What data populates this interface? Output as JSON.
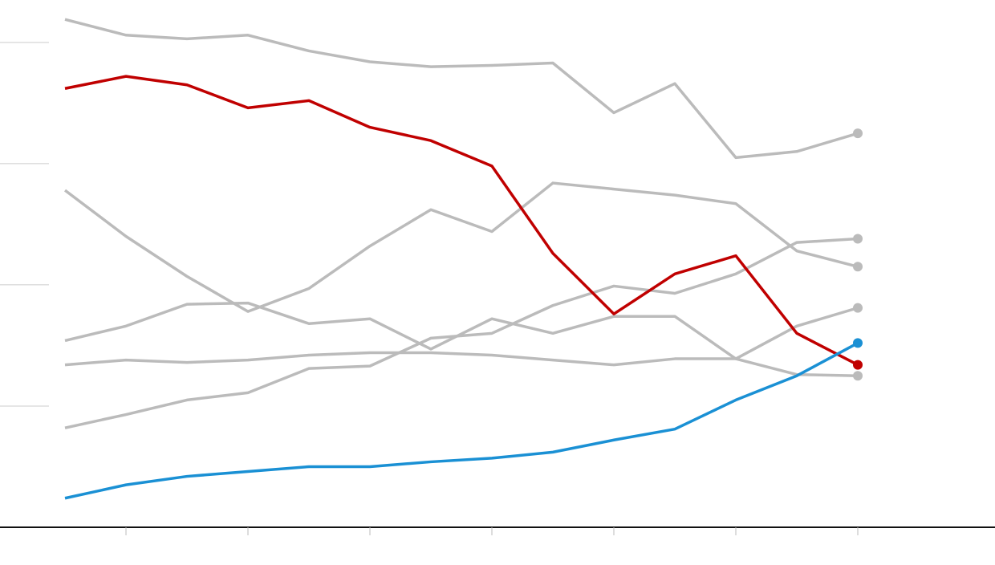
{
  "chart_data": {
    "type": "line",
    "x": [
      0,
      1,
      2,
      3,
      4,
      5,
      6,
      7,
      8,
      9,
      10,
      11,
      12,
      13
    ],
    "xlim": [
      -1.066,
      15.25
    ],
    "xticks": [
      1,
      3,
      5,
      7,
      9,
      11,
      13
    ],
    "ylim": [
      0,
      43.5
    ],
    "yticks": [
      10,
      20,
      30,
      40
    ],
    "grid": true,
    "series": [
      {
        "color": "#bbbbbb",
        "values": [
          41.9,
          40.6,
          40.3,
          40.6,
          39.3,
          38.4,
          38.0,
          38.1,
          38.3,
          34.2,
          36.6,
          30.5,
          31.0,
          32.5
        ]
      },
      {
        "color": "#bbbbbb",
        "values": [
          27.8,
          24.0,
          20.7,
          17.8,
          19.7,
          23.2,
          26.2,
          24.4,
          28.4,
          27.9,
          27.4,
          26.7,
          22.8,
          21.5
        ]
      },
      {
        "color": "#bbbbbb",
        "values": [
          15.4,
          16.6,
          18.4,
          18.5,
          16.8,
          17.2,
          14.7,
          17.2,
          16.0,
          17.4,
          17.4,
          13.9,
          16.6,
          18.1
        ]
      },
      {
        "color": "#bbbbbb",
        "values": [
          13.4,
          13.8,
          13.6,
          13.8,
          14.2,
          14.4,
          14.4,
          14.2,
          13.8,
          13.4,
          13.9,
          13.9,
          12.6,
          12.5
        ]
      },
      {
        "color": "#bbbbbb",
        "values": [
          8.2,
          9.3,
          10.5,
          11.1,
          13.1,
          13.3,
          15.6,
          16.0,
          18.3,
          19.9,
          19.3,
          20.9,
          23.5,
          23.8
        ]
      },
      {
        "color": "#c00000",
        "values": [
          36.2,
          37.2,
          36.5,
          34.6,
          35.2,
          33.0,
          31.9,
          29.8,
          22.6,
          17.6,
          20.9,
          22.4,
          16.0,
          13.4
        ]
      },
      {
        "color": "#1a90d4",
        "values": [
          2.4,
          3.5,
          4.2,
          4.6,
          5.0,
          5.0,
          5.4,
          5.7,
          6.2,
          7.2,
          8.1,
          10.5,
          12.5,
          15.2
        ]
      }
    ]
  }
}
